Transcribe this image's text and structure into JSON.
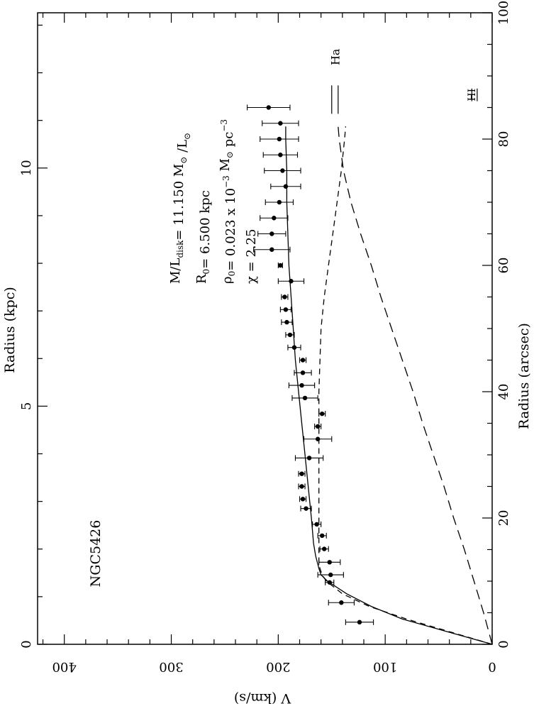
{
  "chart_data": {
    "type": "scatter",
    "orientation": "rotated-90-clockwise",
    "object_label": "NGC5426",
    "axes": {
      "velocity": {
        "label": "V (km/s)",
        "range": [
          0,
          425
        ],
        "ticks": [
          "0",
          "100",
          "200",
          "300",
          "400"
        ],
        "tick_values": [
          0,
          100,
          200,
          300,
          400
        ],
        "position": "bottom"
      },
      "radius_kpc": {
        "label": "Radius (kpc)",
        "range": [
          0,
          13.26
        ],
        "ticks": [
          "0",
          "5",
          "10"
        ],
        "tick_values": [
          0,
          5,
          10
        ],
        "position": "left"
      },
      "radius_arcsec": {
        "label": "Radius (arcsec)",
        "range": [
          0,
          100
        ],
        "ticks": [
          "0",
          "20",
          "40",
          "60",
          "80",
          "100"
        ],
        "tick_values": [
          0,
          20,
          40,
          60,
          80,
          100
        ],
        "position": "right"
      }
    },
    "parameters": [
      {
        "prefix": "M/L",
        "sub": "disk",
        "value": "= 11.150 M",
        "sun": true,
        "tail": " /L",
        "tail_sun": true
      },
      {
        "prefix": "R",
        "sub": "0",
        "value": "= 6.500 kpc"
      },
      {
        "prefix": "ρ",
        "sub": "0",
        "value": "= 0.023 x 10",
        "sup": "−3",
        "tail": " M",
        "tail_sun": true,
        "tail2": " pc",
        "sup2": "−3"
      },
      {
        "prefix": "χ",
        "value": " = 2.25"
      }
    ],
    "top_marker_labels": {
      "left": "Ha",
      "right": "HI"
    },
    "observed": {
      "r_arcsec": [
        3.5,
        6.6,
        9.8,
        11.0,
        13.0,
        15.1,
        17.2,
        19.0,
        21.5,
        23.0,
        25.0,
        27.0,
        29.5,
        32.5,
        34.5,
        36.5,
        39.0,
        41.0,
        43.0,
        45.0,
        47.0,
        49.0,
        51.0,
        53.0,
        55.0,
        57.5,
        60.0,
        62.5,
        65.0,
        67.5,
        70.0,
        72.5,
        75.0,
        77.5,
        80.0,
        82.5,
        85.0
      ],
      "v_kms": [
        124,
        141,
        152,
        151,
        152,
        157,
        159,
        164,
        174,
        177,
        178,
        178,
        171,
        163,
        163,
        159,
        175,
        178,
        177,
        177,
        185,
        189,
        192,
        193,
        194,
        188,
        198,
        206,
        206,
        204,
        199,
        193,
        196,
        198,
        199,
        198,
        209
      ],
      "err_kms": [
        13,
        12,
        4,
        12,
        10,
        4,
        4,
        4,
        5,
        3,
        3,
        3,
        13,
        13,
        3,
        3,
        12,
        12,
        8,
        3,
        6,
        4,
        5,
        5,
        3,
        12,
        2,
        17,
        13,
        13,
        13,
        14,
        17,
        16,
        18,
        17,
        20
      ]
    },
    "model_total": {
      "r_arcsec": [
        0,
        2,
        4,
        6,
        8,
        10,
        11,
        12,
        14,
        16,
        18,
        20,
        25,
        30,
        35,
        40,
        45,
        50,
        55,
        60,
        65,
        70,
        75,
        80,
        82
      ],
      "v_kms": [
        0,
        42,
        84,
        113,
        136,
        154,
        160,
        162,
        165,
        167,
        168,
        169,
        172,
        175,
        178,
        181,
        184,
        186,
        188,
        190,
        191,
        192,
        192,
        193,
        193
      ]
    },
    "model_disk": {
      "r_arcsec": [
        0,
        2,
        4,
        6,
        8,
        10,
        11,
        12,
        13,
        14,
        16,
        18,
        20,
        25,
        30,
        35,
        40,
        45,
        50,
        55,
        60,
        65,
        70,
        75,
        80,
        82
      ],
      "v_kms": [
        0,
        40,
        80,
        115,
        140,
        155,
        159,
        161,
        162,
        162,
        162,
        162,
        162,
        162,
        162,
        162,
        162,
        161,
        160,
        157,
        153,
        149,
        145,
        141,
        138,
        137
      ]
    },
    "model_halo": {
      "r_arcsec": [
        0,
        5,
        10,
        15,
        20,
        25,
        30,
        35,
        40,
        45,
        50,
        55,
        60,
        65,
        70,
        75,
        80,
        82
      ],
      "v_kms": [
        0,
        8,
        17,
        26,
        36,
        45,
        55,
        65,
        74,
        84,
        94,
        104,
        113,
        123,
        132,
        139,
        143,
        144
      ]
    },
    "legend": "none",
    "grid": false
  }
}
